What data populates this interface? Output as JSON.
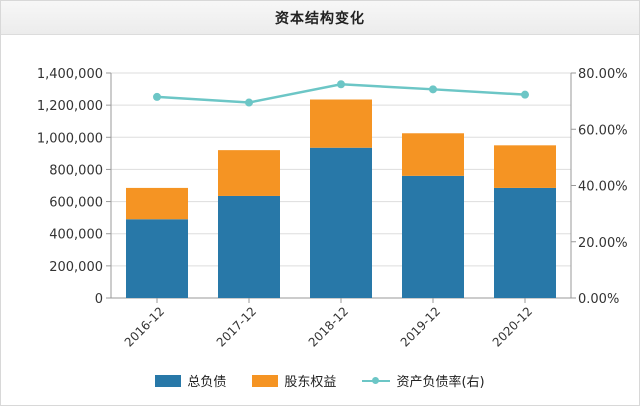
{
  "title": "资本结构变化",
  "colors": {
    "debt": "#2878a8",
    "equity": "#f59423",
    "ratio": "#6cc6c6",
    "axis": "#999999",
    "grid": "#dddddd"
  },
  "legend": {
    "debt": "总负债",
    "equity": "股东权益",
    "ratio": "资产负债率(右)"
  },
  "chart_data": {
    "type": "bar",
    "stacked": true,
    "categories": [
      "2016-12",
      "2017-12",
      "2018-12",
      "2019-12",
      "2020-12"
    ],
    "series": [
      {
        "name": "总负债",
        "values": [
          490000,
          635000,
          935000,
          760000,
          685000
        ]
      },
      {
        "name": "股东权益",
        "values": [
          195000,
          285000,
          300000,
          265000,
          265000
        ]
      },
      {
        "name": "资产负债率(右)",
        "type": "line",
        "axis": "right",
        "values": [
          71.5,
          69.5,
          76.0,
          74.2,
          72.3
        ]
      }
    ],
    "ylim_left": [
      0,
      1400000
    ],
    "ylim_right": [
      0,
      80
    ],
    "yticks_left": [
      "0",
      "200,000",
      "400,000",
      "600,000",
      "800,000",
      "1,000,000",
      "1,200,000",
      "1,400,000"
    ],
    "yticks_right": [
      "0.00%",
      "20.00%",
      "40.00%",
      "60.00%",
      "80.00%"
    ],
    "grid": true,
    "legend_position": "bottom"
  }
}
